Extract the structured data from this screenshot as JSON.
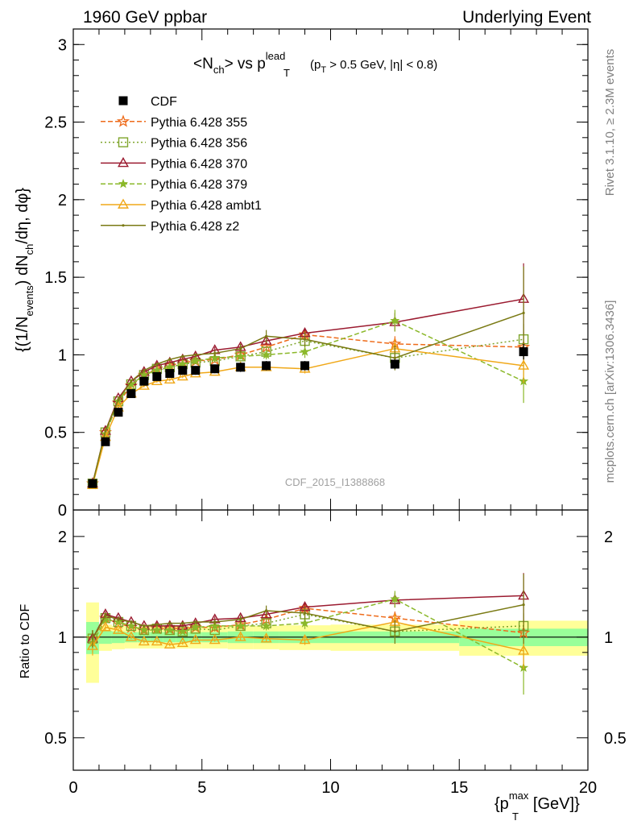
{
  "header": {
    "left": "1960 GeV ppbar",
    "right": "Underlying Event"
  },
  "side_labels": {
    "rivet": "Rivet 3.1.10, ≥ 2.3M events",
    "mcplots": "mcplots.cern.ch [arXiv:1306.3436]"
  },
  "analysis_id": "CDF_2015_I1388868",
  "chart_data": [
    {
      "type": "scatter",
      "panel": "main",
      "title_parts": {
        "lead": "<N",
        "ch": "ch",
        "vs": "> vs p",
        "T": "T",
        "lead_sup": "lead",
        "cut_open": "(p",
        "cut_T": "T",
        "cut_rest": " > 0.5 GeV, |η| < 0.8)"
      },
      "ylabel_parts": {
        "a": "{(1/N",
        "events": "events",
        "b": ") dN",
        "ch": "ch",
        "c": "/dη, dφ}"
      },
      "xlim": [
        0,
        20
      ],
      "ylim": [
        0,
        3.1
      ],
      "y_ticks": [
        0,
        0.5,
        1,
        1.5,
        2,
        2.5,
        3
      ],
      "y_tick_labels": [
        "0",
        "0.5",
        "1",
        "1.5",
        "2",
        "2.5",
        "3"
      ],
      "legend_position": "top-left",
      "data": {
        "name": "CDF",
        "x": [
          0.75,
          1.25,
          1.75,
          2.25,
          2.75,
          3.25,
          3.75,
          4.25,
          4.75,
          5.5,
          6.5,
          7.5,
          9.0,
          12.5,
          17.5
        ],
        "y": [
          0.17,
          0.44,
          0.63,
          0.75,
          0.83,
          0.86,
          0.88,
          0.9,
          0.9,
          0.91,
          0.92,
          0.93,
          0.93,
          0.94,
          1.02
        ],
        "err": [
          0.01,
          0.02,
          0.02,
          0.02,
          0.02,
          0.02,
          0.02,
          0.02,
          0.02,
          0.02,
          0.03,
          0.03,
          0.03,
          0.03,
          0.05
        ]
      },
      "series": [
        {
          "name": "Pythia 6.428 355",
          "color": "#ee6b1a",
          "dash": "6,3",
          "marker": "star-open",
          "y": [
            0.17,
            0.5,
            0.69,
            0.8,
            0.87,
            0.91,
            0.93,
            0.95,
            0.96,
            0.97,
            1.0,
            1.05,
            1.13,
            1.07,
            1.05
          ],
          "err": [
            0.01,
            0.01,
            0.01,
            0.01,
            0.01,
            0.01,
            0.01,
            0.01,
            0.01,
            0.01,
            0.01,
            0.02,
            0.02,
            0.05,
            0.1
          ]
        },
        {
          "name": "Pythia 6.428 356",
          "color": "#7fa52c",
          "dash": "2,3",
          "marker": "square-open",
          "y": [
            0.17,
            0.5,
            0.7,
            0.81,
            0.87,
            0.91,
            0.92,
            0.94,
            0.95,
            0.96,
            0.99,
            1.02,
            1.09,
            0.98,
            1.1
          ],
          "err": [
            0.01,
            0.01,
            0.01,
            0.01,
            0.01,
            0.01,
            0.01,
            0.01,
            0.01,
            0.01,
            0.01,
            0.02,
            0.03,
            0.05,
            0.1
          ]
        },
        {
          "name": "Pythia 6.428 370",
          "color": "#9b1b30",
          "dash": "",
          "marker": "triangle-open",
          "y": [
            0.17,
            0.51,
            0.72,
            0.83,
            0.89,
            0.93,
            0.95,
            0.97,
            0.99,
            1.03,
            1.05,
            1.09,
            1.14,
            1.21,
            1.36
          ],
          "err": [
            0.01,
            0.01,
            0.01,
            0.01,
            0.01,
            0.01,
            0.01,
            0.01,
            0.01,
            0.02,
            0.02,
            0.02,
            0.03,
            0.06,
            0.23
          ]
        },
        {
          "name": "Pythia 6.428 379",
          "color": "#8bb82a",
          "dash": "6,3",
          "marker": "star-filled",
          "y": [
            0.16,
            0.49,
            0.7,
            0.81,
            0.87,
            0.9,
            0.92,
            0.94,
            0.96,
            0.98,
            0.99,
            1.0,
            1.02,
            1.22,
            0.83
          ],
          "err": [
            0.01,
            0.01,
            0.01,
            0.01,
            0.01,
            0.01,
            0.01,
            0.01,
            0.01,
            0.02,
            0.02,
            0.03,
            0.04,
            0.07,
            0.14
          ]
        },
        {
          "name": "Pythia 6.428 ambt1",
          "color": "#f0a818",
          "dash": "",
          "marker": "triangle-open",
          "y": [
            0.16,
            0.47,
            0.66,
            0.75,
            0.8,
            0.83,
            0.84,
            0.86,
            0.88,
            0.89,
            0.92,
            0.92,
            0.91,
            1.04,
            0.93
          ],
          "err": [
            0.01,
            0.01,
            0.01,
            0.01,
            0.01,
            0.01,
            0.01,
            0.01,
            0.01,
            0.01,
            0.02,
            0.02,
            0.03,
            0.06,
            0.11
          ]
        },
        {
          "name": "Pythia 6.428 z2",
          "color": "#7a7a14",
          "dash": "",
          "marker": "dot",
          "y": [
            0.17,
            0.51,
            0.71,
            0.83,
            0.9,
            0.94,
            0.97,
            0.99,
            1.0,
            1.01,
            1.04,
            1.12,
            1.1,
            0.98,
            1.27
          ],
          "err": [
            0.01,
            0.01,
            0.01,
            0.01,
            0.01,
            0.01,
            0.01,
            0.01,
            0.01,
            0.02,
            0.03,
            0.04,
            0.05,
            0.08,
            0.3
          ]
        }
      ]
    },
    {
      "type": "scatter",
      "panel": "ratio",
      "ylabel": "Ratio to CDF",
      "xlabel_parts": {
        "a": "{p",
        "T": "T",
        "max": "max",
        "b": " [GeV]}"
      },
      "xlim": [
        0,
        20
      ],
      "ylim": [
        0.4,
        2.4
      ],
      "y_log": true,
      "x_ticks": [
        0,
        5,
        10,
        15,
        20
      ],
      "x_tick_labels": [
        "0",
        "5",
        "10",
        "15",
        "20"
      ],
      "y_ticks": [
        0.5,
        1,
        2
      ],
      "y_tick_labels": [
        "0.5",
        "1",
        "2"
      ],
      "band_edges": [
        0.5,
        1.0,
        1.5,
        2.0,
        2.5,
        3.0,
        3.5,
        4.0,
        4.5,
        5.0,
        6.0,
        7.0,
        8.0,
        10.0,
        15.0,
        20.0
      ],
      "band_inner": [
        0.11,
        0.045,
        0.04,
        0.035,
        0.035,
        0.035,
        0.035,
        0.035,
        0.035,
        0.035,
        0.04,
        0.04,
        0.04,
        0.04,
        0.06
      ],
      "band_outer": [
        0.27,
        0.09,
        0.08,
        0.075,
        0.075,
        0.075,
        0.075,
        0.075,
        0.075,
        0.075,
        0.08,
        0.08,
        0.085,
        0.09,
        0.12
      ],
      "series": [
        {
          "name": "Pythia 6.428 355",
          "y": [
            0.99,
            1.14,
            1.1,
            1.07,
            1.05,
            1.06,
            1.06,
            1.06,
            1.07,
            1.07,
            1.09,
            1.13,
            1.22,
            1.14,
            1.03
          ]
        },
        {
          "name": "Pythia 6.428 356",
          "y": [
            0.99,
            1.14,
            1.11,
            1.08,
            1.05,
            1.06,
            1.05,
            1.04,
            1.06,
            1.05,
            1.08,
            1.1,
            1.17,
            1.04,
            1.08
          ]
        },
        {
          "name": "Pythia 6.428 370",
          "y": [
            0.99,
            1.17,
            1.14,
            1.11,
            1.08,
            1.08,
            1.08,
            1.08,
            1.1,
            1.13,
            1.14,
            1.17,
            1.23,
            1.29,
            1.33
          ]
        },
        {
          "name": "Pythia 6.428 379",
          "y": [
            0.96,
            1.13,
            1.11,
            1.08,
            1.05,
            1.05,
            1.05,
            1.04,
            1.07,
            1.08,
            1.08,
            1.08,
            1.1,
            1.3,
            0.81
          ]
        },
        {
          "name": "Pythia 6.428 ambt1",
          "y": [
            0.94,
            1.07,
            1.05,
            1.0,
            0.97,
            0.97,
            0.95,
            0.96,
            0.98,
            0.98,
            1.0,
            0.99,
            0.98,
            1.11,
            0.91
          ]
        },
        {
          "name": "Pythia 6.428 z2",
          "y": [
            0.99,
            1.16,
            1.13,
            1.11,
            1.08,
            1.09,
            1.1,
            1.1,
            1.11,
            1.11,
            1.13,
            1.2,
            1.18,
            1.04,
            1.25
          ]
        }
      ]
    }
  ]
}
